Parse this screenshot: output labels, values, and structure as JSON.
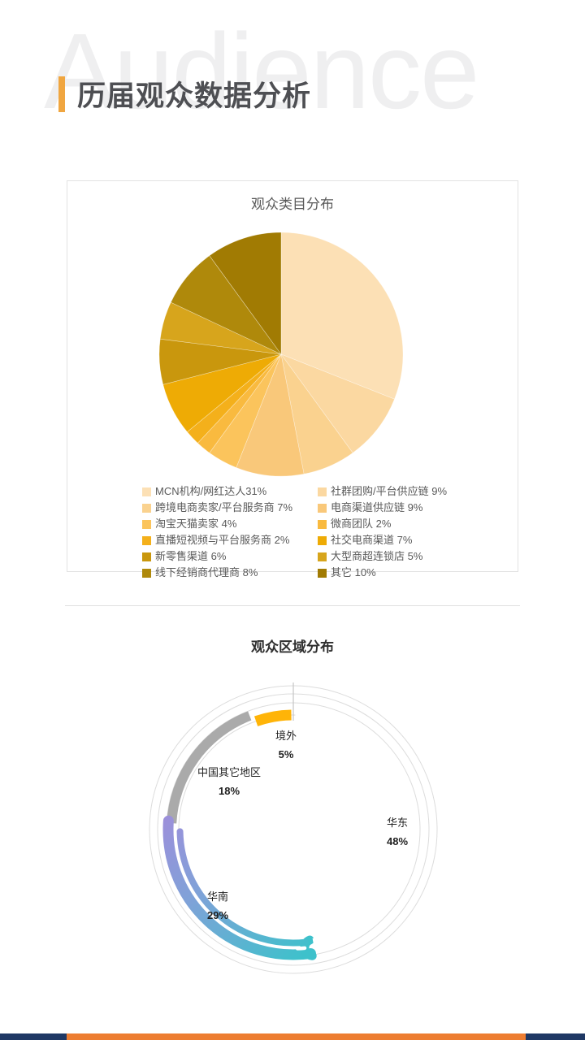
{
  "page": {
    "watermark": "Audience",
    "title": "历届观众数据分析",
    "accent_color": "#F0A640",
    "footer_bar": {
      "left_color": "#1F3864",
      "center_color": "#ED7D31",
      "right_color": "#1F3864"
    }
  },
  "chart_data": [
    {
      "type": "pie",
      "title": "观众类目分布",
      "start_angle": "top",
      "direction": "clockwise",
      "legend_position": "bottom",
      "unit": "%",
      "categories": [
        "MCN机构/网红达人",
        "社群团购/平台供应链",
        "跨境电商卖家/平台服务商",
        "电商渠道供应链",
        "淘宝天猫卖家",
        "微商团队",
        "直播短视频与平台服务商",
        "社交电商渠道",
        "新零售渠道",
        "大型商超连锁店",
        "线下经销商代理商",
        "其它"
      ],
      "values": [
        31,
        9,
        7,
        9,
        4,
        2,
        2,
        7,
        6,
        5,
        8,
        10
      ],
      "colors": [
        "#FCE0B5",
        "#FBD8A1",
        "#FAD28F",
        "#F9C87A",
        "#FBC45C",
        "#F9BA3F",
        "#F4B01B",
        "#EEAB05",
        "#C9970D",
        "#D7A51C",
        "#AF890B",
        "#A17B03"
      ],
      "legend_labels": [
        "MCN机构/网红达人31%",
        "社群团购/平台供应链 9%",
        "跨境电商卖家/平台服务商 7%",
        "电商渠道供应链 9%",
        "淘宝天猫卖家 4%",
        "微商团队 2%",
        "直播短视频与平台服务商 2%",
        "社交电商渠道 7%",
        "新零售渠道 6%",
        "大型商超连锁店 5%",
        "线下经销商代理商 8%",
        "其它 10%"
      ]
    },
    {
      "type": "ring",
      "title": "观众区域分布",
      "start_angle": "top",
      "direction": "counterclockwise",
      "unit": "%",
      "categories": [
        "境外",
        "中国其它地区",
        "华南",
        "华东"
      ],
      "values": [
        5,
        18,
        29,
        48
      ],
      "segments": [
        {
          "label": "境外",
          "value": 5,
          "color": "#FFB408"
        },
        {
          "label": "中国其它地区",
          "value": 18,
          "color": "#AAAAAA"
        },
        {
          "label": "华南",
          "value": 29,
          "color_start": "#A28CDB",
          "color_end": "#3EC1CB"
        },
        {
          "label": "华东",
          "value": 48,
          "color": "#FFFFFF"
        }
      ],
      "track_color": "#DCDCDC"
    }
  ]
}
